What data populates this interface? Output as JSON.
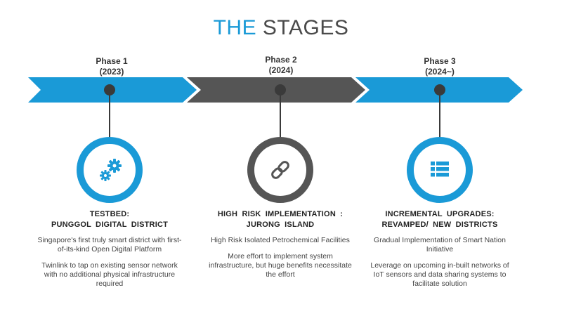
{
  "title": {
    "part1": "THE",
    "part2": "STAGES"
  },
  "colors": {
    "blue": "#1a9ad7",
    "dark": "#555555",
    "dot": "#3a3a3a"
  },
  "phases": [
    {
      "name": "Phase  1",
      "year": "(2023)",
      "icon": "gears-icon",
      "heading_line1": "TESTBED:",
      "heading_line2": "PUNGGOL  DIGITAL  DISTRICT",
      "desc1": "Singapore's first truly smart district with first-of-its-kind Open Digital Platform",
      "desc2": "Twinlink to tap on existing sensor network with no additional physical infrastructure required"
    },
    {
      "name": "Phase  2",
      "year": "(2024)",
      "icon": "chain-link-icon",
      "heading_line1": "HIGH  RISK  IMPLEMENTATION :",
      "heading_line2": "JURONG  ISLAND",
      "desc1": "High Risk Isolated Petrochemical Facilities",
      "desc2": "More effort to implement system infrastructure, but huge benefits necessitate the effort"
    },
    {
      "name": "Phase  3",
      "year": "(2024~)",
      "icon": "list-icon",
      "heading_line1": "INCREMENTAL  UPGRADES:",
      "heading_line2": "REVAMPED/ NEW  DISTRICTS",
      "desc1": "Gradual Implementation of Smart Nation Initiative",
      "desc2": "Leverage on upcoming in-built networks of IoT sensors and data sharing systems to facilitate solution"
    }
  ]
}
